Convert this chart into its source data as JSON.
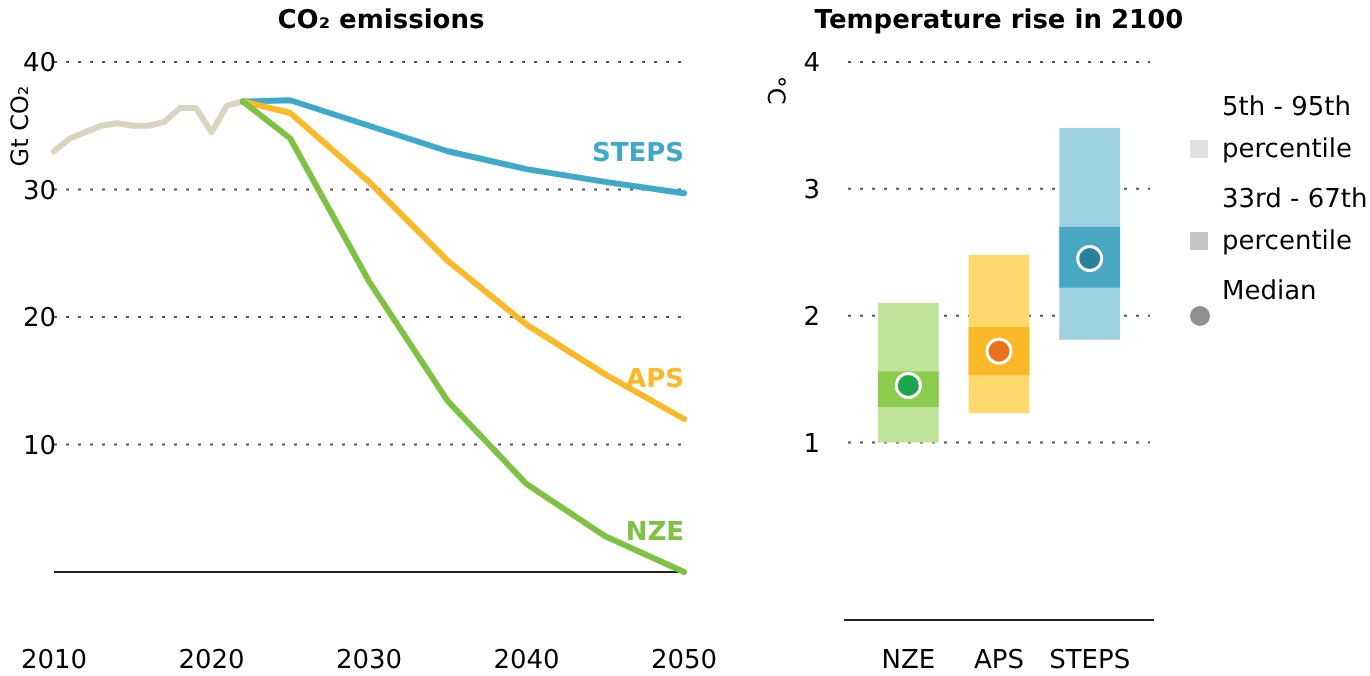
{
  "chart_data": [
    {
      "type": "line",
      "title": "CO₂ emissions",
      "ylabel": "Gt CO₂",
      "xlim": [
        2010,
        2050
      ],
      "xticks": [
        2010,
        2020,
        2030,
        2040,
        2050
      ],
      "ylim": [
        0,
        40
      ],
      "yticks": [
        10,
        20,
        30,
        40
      ],
      "grid": "y",
      "line_style": "solid",
      "marker": "none",
      "series": [
        {
          "color": "#d9d4bd",
          "x": [
            2010,
            2011,
            2012,
            2013,
            2014,
            2015,
            2016,
            2017,
            2018,
            2019,
            2020,
            2021,
            2022
          ],
          "values": [
            33,
            34,
            34.5,
            35,
            35.2,
            35,
            35,
            35.3,
            36.4,
            36.4,
            34.5,
            36.6,
            36.9
          ]
        },
        {
          "name": "STEPS",
          "color": "#3fa9c9",
          "x": [
            2022,
            2025,
            2030,
            2035,
            2040,
            2045,
            2050
          ],
          "values": [
            36.9,
            37,
            35,
            33,
            31.6,
            30.6,
            29.7
          ]
        },
        {
          "name": "APS",
          "color": "#fbb829",
          "x": [
            2022,
            2025,
            2030,
            2035,
            2040,
            2045,
            2050
          ],
          "values": [
            36.9,
            36,
            30.6,
            24.4,
            19.4,
            15.5,
            12
          ]
        },
        {
          "name": "NZE",
          "color": "#7dc242",
          "x": [
            2022,
            2025,
            2030,
            2035,
            2040,
            2045,
            2050
          ],
          "values": [
            36.9,
            34,
            22.8,
            13.4,
            6.9,
            2.8,
            0
          ]
        }
      ]
    },
    {
      "type": "bar",
      "title": "Temperature rise in 2100",
      "ylabel": "°C",
      "categories": [
        "NZE",
        "APS",
        "STEPS"
      ],
      "ylim": [
        -0.4,
        4
      ],
      "yticks": [
        1,
        2,
        3,
        4
      ],
      "grid": "y",
      "legend": "right",
      "series": [
        {
          "name": "5th - 95th percentile",
          "color": "#e0e0e0",
          "colors": [
            "#c0e39a",
            "#fdd96e",
            "#9dd0e0"
          ],
          "base": [
            1.0,
            1.23,
            1.81
          ],
          "values": [
            1.1,
            1.25,
            1.67
          ]
        },
        {
          "name": "33rd - 67th percentile",
          "color": "#c4c4c4",
          "colors": [
            "#8bcb4e",
            "#fbb829",
            "#48a8c4"
          ],
          "base": [
            1.28,
            1.53,
            2.22
          ],
          "values": [
            0.28,
            0.38,
            0.48
          ]
        },
        {
          "name": "Median",
          "type": "scatter",
          "marker": "circle",
          "color": "#909090",
          "colors": [
            "#1aa64a",
            "#e8731a",
            "#2a7f9a"
          ],
          "x": [
            "NZE",
            "APS",
            "STEPS"
          ],
          "values": [
            1.45,
            1.72,
            2.45
          ]
        }
      ]
    }
  ]
}
